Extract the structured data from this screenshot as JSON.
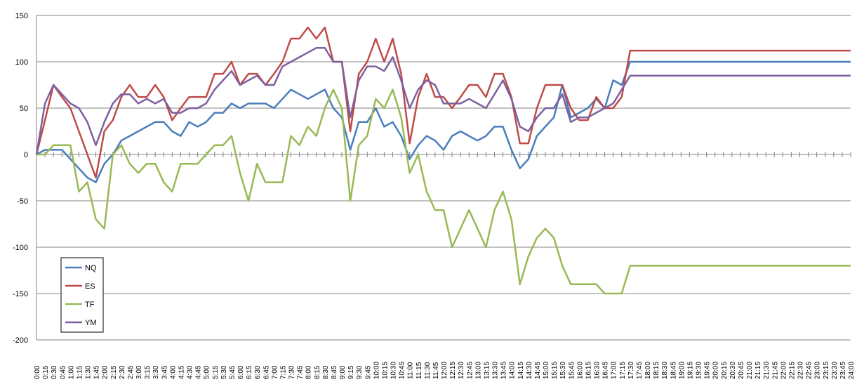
{
  "chart_data": {
    "type": "line",
    "title": "",
    "xlabel": "",
    "ylabel": "",
    "ylim": [
      -200,
      150
    ],
    "yticks": [
      150,
      100,
      50,
      0,
      -50,
      -100,
      -150,
      -200
    ],
    "grid": "horizontal",
    "legend_position": "bottom-left",
    "x": [
      "0:00",
      "0:15",
      "0:30",
      "0:45",
      "1:00",
      "1:15",
      "1:30",
      "1:45",
      "2:00",
      "2:15",
      "2:30",
      "2:45",
      "3:00",
      "3:15",
      "3:30",
      "3:45",
      "4:00",
      "4:15",
      "4:30",
      "4:45",
      "5:00",
      "5:15",
      "5:30",
      "5:45",
      "6:00",
      "6:15",
      "6:30",
      "6:45",
      "7:00",
      "7:15",
      "7:30",
      "7:45",
      "8:00",
      "8:15",
      "8:30",
      "8:45",
      "9:00",
      "9:15",
      "9:30",
      "9:45",
      "10:00",
      "10:15",
      "10:30",
      "10:45",
      "11:00",
      "11:15",
      "11:30",
      "11:45",
      "12:00",
      "12:15",
      "12:30",
      "12:45",
      "13:00",
      "13:15",
      "13:30",
      "13:45",
      "14:00",
      "14:15",
      "14:30",
      "14:45",
      "15:00",
      "15:15",
      "15:30",
      "15:45",
      "16:00",
      "16:15",
      "16:30",
      "16:45",
      "17:00",
      "17:15",
      "17:30",
      "17:45",
      "18:00",
      "18:15",
      "18:30",
      "18:45",
      "19:00",
      "19:15",
      "19:30",
      "19:45",
      "20:00",
      "20:15",
      "20:30",
      "20:45",
      "21:00",
      "21:15",
      "21:30",
      "21:45",
      "22:00",
      "22:15",
      "22:30",
      "22:45",
      "23:00",
      "23:15",
      "23:30",
      "23:45",
      "24:00"
    ],
    "series": [
      {
        "name": "NQ",
        "color": "#4a7ebb",
        "values": [
          0,
          5,
          5,
          5,
          -5,
          -15,
          -25,
          -30,
          -10,
          0,
          15,
          20,
          25,
          30,
          35,
          35,
          25,
          20,
          35,
          30,
          35,
          45,
          45,
          55,
          50,
          55,
          55,
          55,
          50,
          60,
          70,
          65,
          60,
          65,
          70,
          50,
          40,
          5,
          35,
          35,
          50,
          30,
          35,
          20,
          -5,
          10,
          20,
          15,
          5,
          20,
          25,
          20,
          15,
          20,
          30,
          30,
          5,
          -15,
          -5,
          20,
          30,
          40,
          75,
          40,
          45,
          50,
          60,
          50,
          80,
          75,
          100,
          100,
          100,
          100,
          100,
          100,
          100,
          100,
          100,
          100,
          100,
          100,
          100,
          100,
          100,
          100,
          100,
          100,
          100,
          100,
          100,
          100,
          100,
          100,
          100,
          100,
          100
        ]
      },
      {
        "name": "ES",
        "color": "#be4b48",
        "values": [
          0,
          37,
          75,
          62,
          50,
          25,
          0,
          -25,
          25,
          37,
          62,
          75,
          62,
          62,
          75,
          62,
          37,
          50,
          62,
          62,
          62,
          87,
          87,
          100,
          75,
          87,
          87,
          75,
          87,
          100,
          125,
          125,
          137,
          125,
          137,
          100,
          100,
          25,
          87,
          100,
          125,
          100,
          125,
          87,
          12,
          62,
          87,
          62,
          62,
          50,
          62,
          75,
          75,
          62,
          87,
          87,
          62,
          12,
          12,
          50,
          75,
          75,
          75,
          50,
          37,
          37,
          62,
          50,
          50,
          62,
          112,
          112,
          112,
          112,
          112,
          112,
          112,
          112,
          112,
          112,
          112,
          112,
          112,
          112,
          112,
          112,
          112,
          112,
          112,
          112,
          112,
          112,
          112,
          112,
          112,
          112,
          112
        ]
      },
      {
        "name": "TF",
        "color": "#98b954",
        "values": [
          0,
          0,
          10,
          10,
          10,
          -40,
          -30,
          -70,
          -80,
          0,
          10,
          -10,
          -20,
          -10,
          -10,
          -30,
          -40,
          -10,
          -10,
          -10,
          0,
          10,
          10,
          20,
          -20,
          -50,
          -10,
          -30,
          -30,
          -30,
          20,
          10,
          30,
          20,
          50,
          70,
          50,
          -50,
          10,
          20,
          60,
          50,
          70,
          40,
          -20,
          0,
          -40,
          -60,
          -60,
          -100,
          -80,
          -60,
          -80,
          -100,
          -60,
          -40,
          -70,
          -140,
          -110,
          -90,
          -80,
          -90,
          -120,
          -140,
          -140,
          -140,
          -140,
          -150,
          -150,
          -150,
          -120,
          -120,
          -120,
          -120,
          -120,
          -120,
          -120,
          -120,
          -120,
          -120,
          -120,
          -120,
          -120,
          -120,
          -120,
          -120,
          -120,
          -120,
          -120,
          -120,
          -120,
          -120,
          -120,
          -120,
          -120,
          -120,
          -120
        ]
      },
      {
        "name": "YM",
        "color": "#7d60a0",
        "values": [
          0,
          55,
          75,
          65,
          55,
          50,
          35,
          10,
          35,
          55,
          65,
          65,
          55,
          60,
          55,
          60,
          45,
          45,
          50,
          50,
          55,
          70,
          80,
          90,
          75,
          80,
          85,
          75,
          75,
          95,
          100,
          105,
          110,
          115,
          115,
          100,
          100,
          40,
          80,
          95,
          95,
          90,
          105,
          80,
          50,
          70,
          80,
          75,
          55,
          55,
          55,
          60,
          55,
          50,
          65,
          80,
          60,
          30,
          25,
          40,
          50,
          50,
          65,
          35,
          40,
          40,
          45,
          50,
          55,
          70,
          85,
          85,
          85,
          85,
          85,
          85,
          85,
          85,
          85,
          85,
          85,
          85,
          85,
          85,
          85,
          85,
          85,
          85,
          85,
          85,
          85,
          85,
          85,
          85,
          85,
          85,
          85
        ]
      }
    ]
  }
}
